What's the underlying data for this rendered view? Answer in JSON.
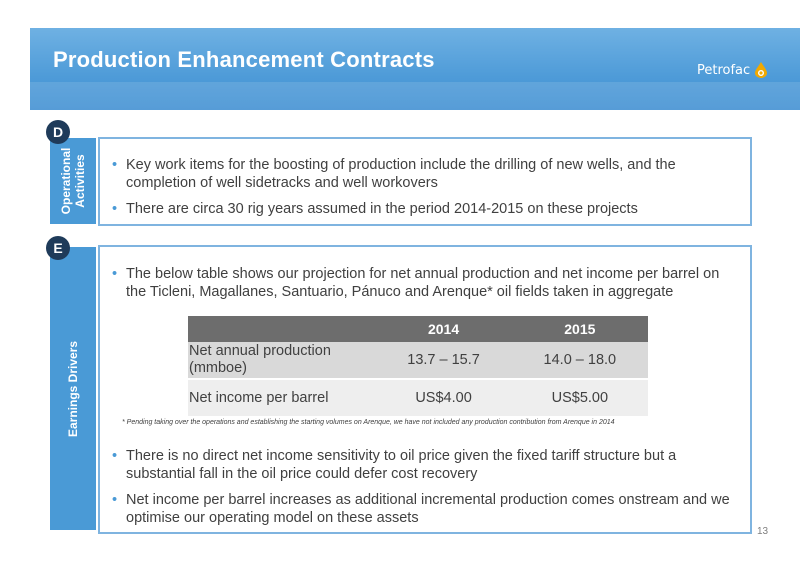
{
  "header": {
    "title": "Production Enhancement Contracts",
    "logo_text": "Petrofac"
  },
  "section_d": {
    "badge": "D",
    "tab_line1": "Operational",
    "tab_line2": "Activities",
    "bullets": [
      "Key work items for the boosting of production include the drilling of new wells, and the completion of well sidetracks and well workovers",
      "There are circa 30 rig years assumed in the period 2014-2015 on these projects"
    ]
  },
  "section_e": {
    "badge": "E",
    "tab_label": "Earnings Drivers",
    "intro_bullet": "The below table shows our projection for net annual production and net income per barrel on the Ticleni, Magallanes, Santuario, Pánuco and Arenque* oil fields taken in aggregate",
    "table": {
      "headers": [
        "",
        "2014",
        "2015"
      ],
      "rows": [
        [
          "Net annual production (mmboe)",
          "13.7 – 15.7",
          "14.0 – 18.0"
        ],
        [
          "Net income per barrel",
          "US$4.00",
          "US$5.00"
        ]
      ]
    },
    "footnote": "* Pending taking over the operations and establishing the starting volumes on Arenque, we have not included any production contribution from Arenque in 2014",
    "bullets": [
      "There is no direct net income sensitivity to oil price given the fixed tariff structure but a substantial fall in the oil price could defer cost recovery",
      "Net income per barrel increases as additional incremental production comes onstream and we optimise our operating model on these assets"
    ]
  },
  "page_number": "13",
  "colors": {
    "header_blue": "#4e9bd8",
    "tab_blue": "#4a9ad6",
    "badge_navy": "#1f3b5a",
    "table_header": "#6d6d6d"
  }
}
